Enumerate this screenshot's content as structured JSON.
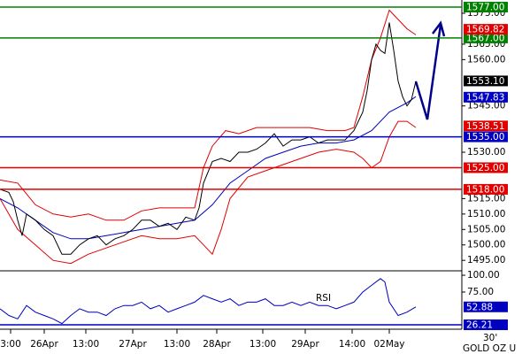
{
  "chart_data": {
    "type": "line",
    "symbol": "GOLD OZ U",
    "timeframe": "30'",
    "xlim": [
      0,
      261
    ],
    "xticks": [
      {
        "value": 6,
        "label": "3:00"
      },
      {
        "value": 25,
        "label": "26Apr"
      },
      {
        "value": 48.5,
        "label": "13:00"
      },
      {
        "value": 75,
        "label": "27Apr"
      },
      {
        "value": 100,
        "label": "13:00"
      },
      {
        "value": 122.5,
        "label": "28Apr"
      },
      {
        "value": 148.5,
        "label": "13:00"
      },
      {
        "value": 172.5,
        "label": "29Apr"
      },
      {
        "value": 199,
        "label": "14:00"
      },
      {
        "value": 220,
        "label": "02May"
      }
    ],
    "ylim": [
      1491.9,
      1579.3
    ],
    "yticks": [
      {
        "value": 1575,
        "label": "1575.00"
      },
      {
        "value": 1565,
        "label": "1565.00"
      },
      {
        "value": 1560,
        "label": "1560.00"
      },
      {
        "value": 1545,
        "label": "1545.00"
      },
      {
        "value": 1530,
        "label": "1530.00"
      },
      {
        "value": 1515,
        "label": "1515.00"
      },
      {
        "value": 1510,
        "label": "1510.00"
      },
      {
        "value": 1505,
        "label": "1505.00"
      },
      {
        "value": 1500,
        "label": "1500.00"
      },
      {
        "value": 1495,
        "label": "1495.00"
      }
    ],
    "series": [
      {
        "color": "#e00000",
        "x": [
          0,
          10,
          20,
          30,
          40,
          50,
          60,
          70,
          80,
          90,
          100,
          110,
          115,
          120,
          127.5,
          135,
          145,
          155,
          165,
          175,
          185,
          195,
          200,
          205,
          210,
          215,
          220,
          225,
          230,
          235
        ],
        "values": [
          1521,
          1520,
          1513,
          1510,
          1509,
          1510,
          1508,
          1508,
          1511,
          1512,
          1512,
          1512,
          1525,
          1532,
          1537,
          1536,
          1538,
          1538,
          1538,
          1538,
          1537,
          1537,
          1538,
          1548,
          1560,
          1567,
          1576,
          1573,
          1570,
          1568
        ]
      },
      {
        "color": "#e00000",
        "x": [
          0,
          10,
          20,
          30,
          40,
          50,
          60,
          70,
          80,
          90,
          100,
          110,
          115,
          120,
          125,
          130,
          140,
          150,
          160,
          170,
          180,
          190,
          200,
          205,
          210,
          215,
          220,
          225,
          230,
          235
        ],
        "values": [
          1515,
          1505,
          1500,
          1495,
          1494,
          1497,
          1499,
          1501,
          1503,
          1502,
          1502,
          1503,
          1500,
          1497,
          1505,
          1515,
          1522,
          1524,
          1526,
          1528,
          1530,
          1531,
          1530,
          1528,
          1525,
          1527,
          1535,
          1540,
          1540,
          1538
        ]
      },
      {
        "color": "#0000c0",
        "x": [
          0,
          10,
          20,
          30,
          40,
          50,
          60,
          70,
          80,
          90,
          100,
          110,
          120,
          130,
          140,
          150,
          160,
          170,
          180,
          190,
          200,
          210,
          220,
          230,
          235
        ],
        "values": [
          1515,
          1512,
          1508,
          1504,
          1502,
          1502,
          1503,
          1504,
          1505,
          1506,
          1507,
          1508,
          1513,
          1520,
          1524,
          1528,
          1530,
          1532,
          1533,
          1533,
          1534,
          1537,
          1543,
          1546,
          1548
        ]
      },
      {
        "color": "#000000",
        "x": [
          0,
          5,
          7.5,
          10,
          12.5,
          15,
          20,
          25,
          30,
          35,
          40,
          45,
          50,
          55,
          60,
          65,
          70,
          75,
          80,
          85,
          90,
          95,
          100,
          105,
          110,
          112.5,
          115,
          120,
          125,
          130,
          135,
          140,
          145,
          150,
          155,
          160,
          165,
          170,
          175,
          180,
          185,
          190,
          195,
          200,
          205,
          207.5,
          210,
          212.5,
          215,
          217.5,
          220,
          222.5,
          225,
          227.5,
          230,
          232.5,
          235
        ],
        "values": [
          1518,
          1517,
          1514,
          1508,
          1503,
          1510,
          1508,
          1505,
          1503,
          1497,
          1497,
          1500,
          1502,
          1503,
          1500,
          1502,
          1503,
          1505,
          1508,
          1508,
          1506,
          1507,
          1505,
          1509,
          1508,
          1512,
          1520,
          1527,
          1528,
          1527,
          1530,
          1530,
          1531,
          1533,
          1536,
          1532,
          1534,
          1534,
          1535,
          1533,
          1534,
          1534,
          1534,
          1537,
          1543,
          1550,
          1560,
          1565,
          1563,
          1562,
          1572,
          1563,
          1553,
          1548,
          1545,
          1547,
          1553
        ]
      }
    ],
    "levels": [
      {
        "value": 1577,
        "label": "1577.00",
        "color": "#008000"
      },
      {
        "value": 1567,
        "label": "1567.00",
        "color": "#008000"
      },
      {
        "value": 1535,
        "label": "1535.00",
        "color": "#0000c0"
      },
      {
        "value": 1525,
        "label": "1525.00",
        "color": "#e00000"
      },
      {
        "value": 1518,
        "label": "1518.00",
        "color": "#e00000"
      }
    ],
    "markers": [
      {
        "value": 1569.82,
        "label": "1569.82",
        "color": "#e00000"
      },
      {
        "value": 1553.1,
        "label": "1553.10",
        "color": "#000000"
      },
      {
        "value": 1547.83,
        "label": "1547.83",
        "color": "#0000c0"
      },
      {
        "value": 1538.51,
        "label": "1538.51",
        "color": "#e00000"
      }
    ],
    "rsi": {
      "name": "RSI",
      "ylim": [
        19.6,
        105.3
      ],
      "yticks": [
        {
          "value": 100,
          "label": "100.00"
        },
        {
          "value": 75,
          "label": "75.00"
        }
      ],
      "series": [
        {
          "color": "#0000c0",
          "x": [
            0,
            5,
            10,
            15,
            20,
            25,
            30,
            35,
            40,
            45,
            50,
            55,
            60,
            65,
            70,
            75,
            80,
            85,
            90,
            95,
            100,
            105,
            110,
            115,
            120,
            125,
            130,
            135,
            140,
            145,
            150,
            155,
            160,
            165,
            170,
            175,
            180,
            185,
            190,
            195,
            200,
            205,
            210,
            215,
            217.5,
            220,
            225,
            230,
            235
          ],
          "values": [
            50,
            40,
            35,
            55,
            45,
            40,
            35,
            28,
            40,
            50,
            45,
            45,
            40,
            50,
            55,
            55,
            60,
            50,
            55,
            45,
            50,
            55,
            60,
            70,
            65,
            60,
            65,
            55,
            60,
            60,
            65,
            55,
            55,
            60,
            55,
            60,
            55,
            55,
            50,
            55,
            60,
            75,
            85,
            95,
            90,
            60,
            40,
            45,
            52.88
          ]
        }
      ],
      "levels": [
        {
          "value": 26.21,
          "label": "26.21",
          "color": "#0000c0"
        }
      ],
      "markers": [
        {
          "value": 52.88,
          "label": "52.88",
          "color": "#0000c0"
        }
      ]
    }
  }
}
